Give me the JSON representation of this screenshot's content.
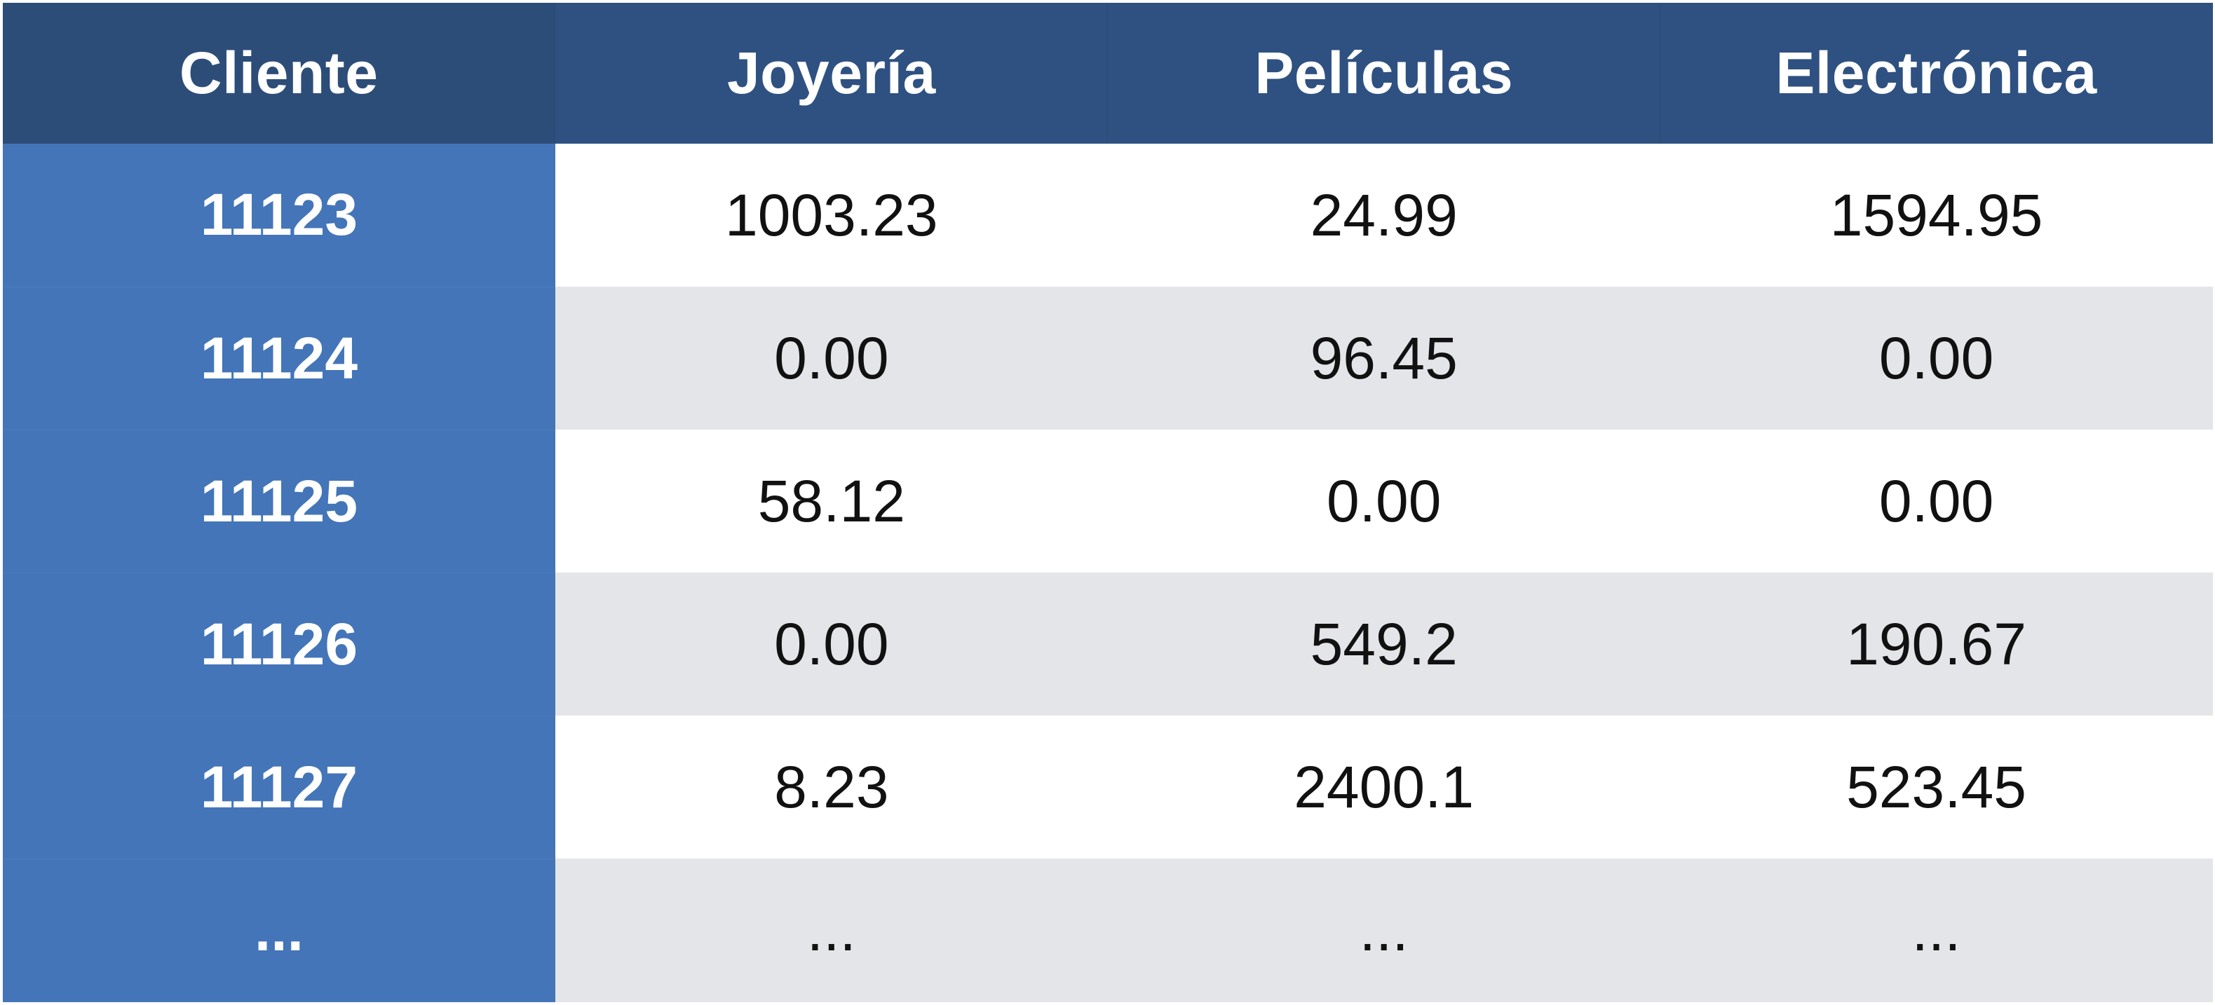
{
  "chart_data": {
    "type": "table",
    "columns": [
      "Cliente",
      "Joyería",
      "Películas",
      "Electrónica"
    ],
    "rows": [
      [
        "11123",
        "1003.23",
        "24.99",
        "1594.95"
      ],
      [
        "11124",
        "0.00",
        "96.45",
        "0.00"
      ],
      [
        "11125",
        "58.12",
        "0.00",
        "0.00"
      ],
      [
        "11126",
        "0.00",
        "549.2",
        "190.67"
      ],
      [
        "11127",
        "8.23",
        "2400.1",
        "523.45"
      ],
      [
        "...",
        "...",
        "...",
        "..."
      ]
    ]
  },
  "colors": {
    "header_background": "#2e5181",
    "client_column_background": "#4375b8",
    "row_white": "#ffffff",
    "row_gray": "#e4e5e8",
    "header_text": "#ffffff",
    "value_text": "#111111"
  }
}
